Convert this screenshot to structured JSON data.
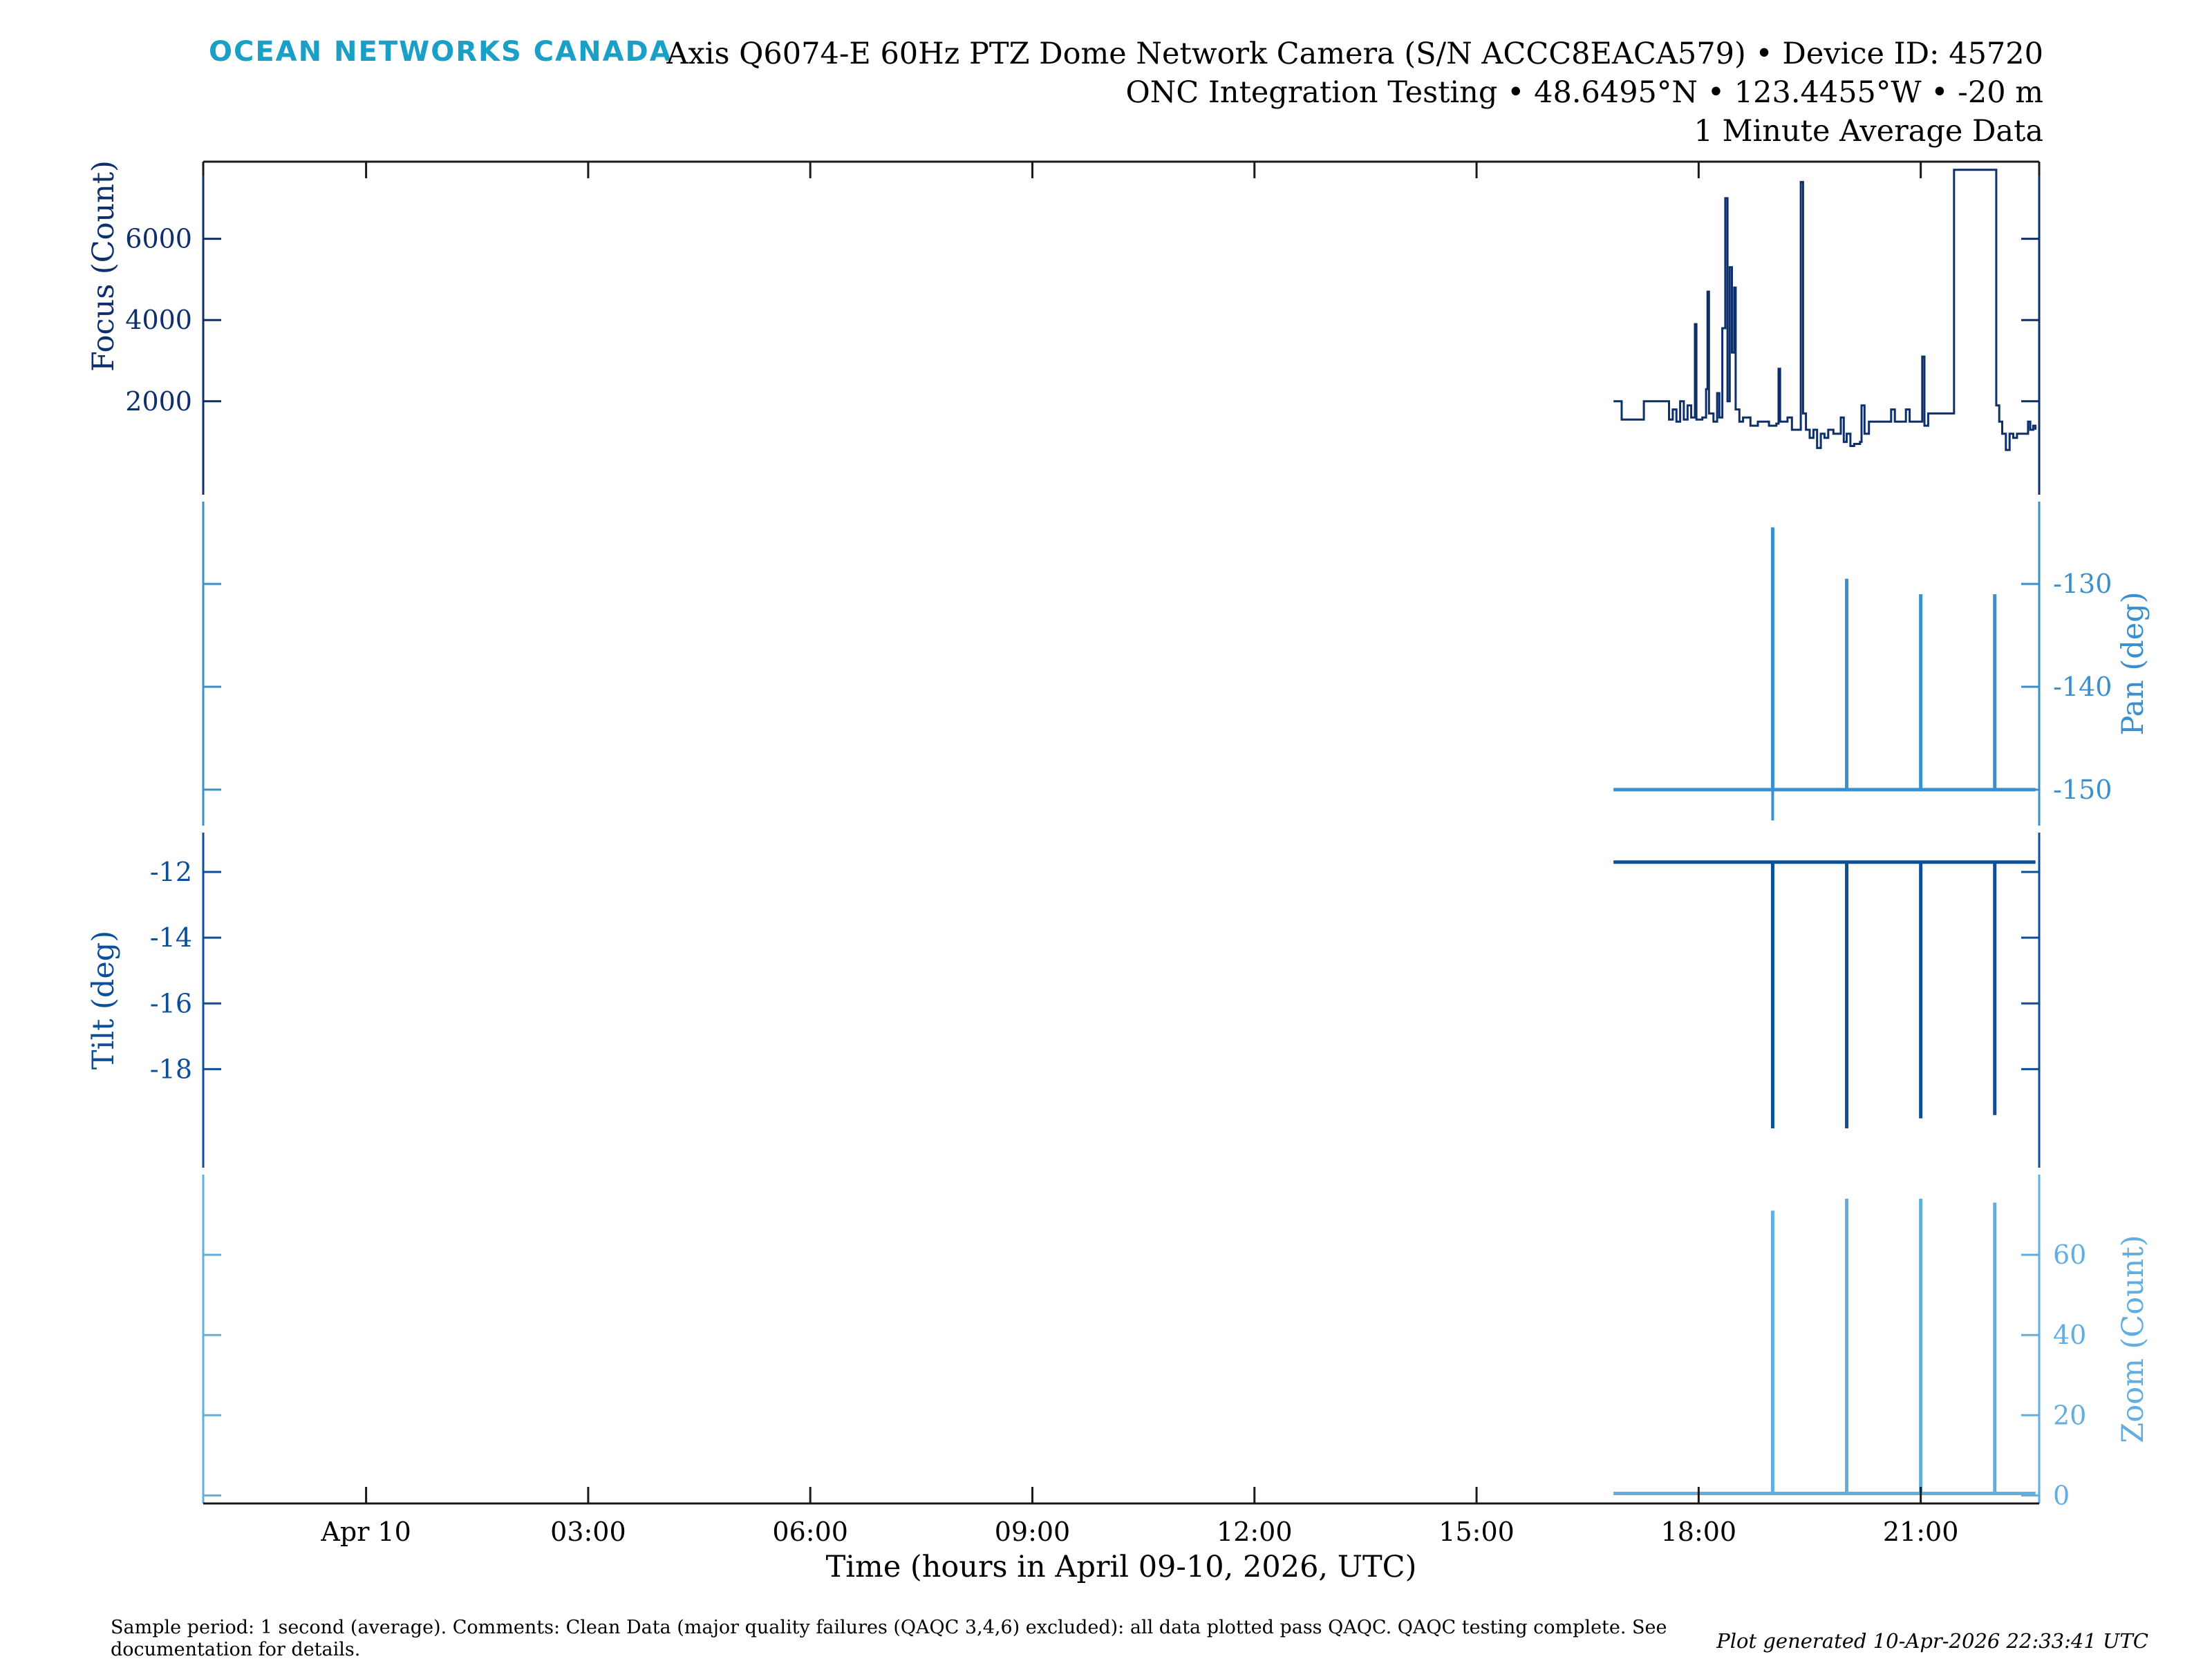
{
  "header": {
    "brand": "OCEAN NETWORKS CANADA",
    "title_line1": "Axis Q6074-E 60Hz PTZ Dome Network Camera (S/N ACCC8EACA579) • Device ID: 45720",
    "title_line2": "ONC Integration Testing • 48.6495°N • 123.4455°W • -20 m",
    "title_line3": "1 Minute Average Data"
  },
  "footer": {
    "comments": "Sample period: 1 second (average). Comments: Clean Data (major quality failures (QAQC 3,4,6) excluded): all data plotted pass QAQC. QAQC testing complete. See documentation for details.",
    "generated": "Plot generated 10-Apr-2026 22:33:41 UTC"
  },
  "colors": {
    "focus": "#0d2f6b",
    "pan": "#3a8fcf",
    "tilt": "#0b4f9a",
    "zoom": "#62aee0",
    "axis": "#1a1a1a"
  },
  "chart_data": {
    "type": "line",
    "xlabel": "Time (hours in April 09-10, 2026, UTC)",
    "x_unit": "hours since 2026-04-09 00:00 UTC",
    "xlim": [
      21.8,
      46.6
    ],
    "x_ticks": [
      {
        "x": 24,
        "label": "Apr 10"
      },
      {
        "x": 27,
        "label": "03:00"
      },
      {
        "x": 30,
        "label": "06:00"
      },
      {
        "x": 33,
        "label": "09:00"
      },
      {
        "x": 36,
        "label": "12:00"
      },
      {
        "x": 39,
        "label": "15:00"
      },
      {
        "x": 42,
        "label": "18:00"
      },
      {
        "x": 45,
        "label": "21:00"
      }
    ],
    "series": [
      {
        "name": "Focus (Count)",
        "ylabel": "Focus (Count)",
        "side": "left",
        "ylim": [
          -300,
          7900
        ],
        "yticks": [
          2000,
          4000,
          6000
        ],
        "points": [
          [
            40.85,
            2000
          ],
          [
            40.95,
            2000
          ],
          [
            40.96,
            1550
          ],
          [
            41.25,
            1550
          ],
          [
            41.26,
            2000
          ],
          [
            41.55,
            2000
          ],
          [
            41.6,
            1550
          ],
          [
            41.65,
            1800
          ],
          [
            41.7,
            1500
          ],
          [
            41.75,
            2000
          ],
          [
            41.8,
            1550
          ],
          [
            41.85,
            1900
          ],
          [
            41.9,
            1600
          ],
          [
            41.95,
            3900
          ],
          [
            41.97,
            1550
          ],
          [
            42.05,
            1600
          ],
          [
            42.1,
            2300
          ],
          [
            42.12,
            4700
          ],
          [
            42.14,
            1700
          ],
          [
            42.2,
            1500
          ],
          [
            42.25,
            2200
          ],
          [
            42.28,
            1600
          ],
          [
            42.32,
            3800
          ],
          [
            42.36,
            7000
          ],
          [
            42.39,
            2000
          ],
          [
            42.42,
            5300
          ],
          [
            42.45,
            3200
          ],
          [
            42.48,
            4800
          ],
          [
            42.5,
            1800
          ],
          [
            42.55,
            1500
          ],
          [
            42.6,
            1600
          ],
          [
            42.7,
            1400
          ],
          [
            42.8,
            1500
          ],
          [
            42.95,
            1400
          ],
          [
            43.05,
            1450
          ],
          [
            43.08,
            2800
          ],
          [
            43.1,
            1500
          ],
          [
            43.2,
            1600
          ],
          [
            43.26,
            1300
          ],
          [
            43.32,
            1300
          ],
          [
            43.38,
            7400
          ],
          [
            43.41,
            1700
          ],
          [
            43.45,
            1300
          ],
          [
            43.5,
            1100
          ],
          [
            43.55,
            1300
          ],
          [
            43.6,
            850
          ],
          [
            43.65,
            1200
          ],
          [
            43.7,
            1100
          ],
          [
            43.75,
            1300
          ],
          [
            43.82,
            1200
          ],
          [
            43.88,
            1200
          ],
          [
            43.92,
            1600
          ],
          [
            43.96,
            1000
          ],
          [
            44.0,
            1200
          ],
          [
            44.05,
            900
          ],
          [
            44.1,
            950
          ],
          [
            44.18,
            1000
          ],
          [
            44.2,
            1900
          ],
          [
            44.24,
            1200
          ],
          [
            44.3,
            1500
          ],
          [
            44.45,
            1500
          ],
          [
            44.55,
            1500
          ],
          [
            44.6,
            1800
          ],
          [
            44.65,
            1500
          ],
          [
            44.75,
            1500
          ],
          [
            44.8,
            1800
          ],
          [
            44.85,
            1500
          ],
          [
            44.98,
            1500
          ],
          [
            45.02,
            3100
          ],
          [
            45.05,
            1400
          ],
          [
            45.1,
            1700
          ],
          [
            45.2,
            1700
          ],
          [
            45.4,
            1700
          ],
          [
            45.45,
            7700
          ],
          [
            45.98,
            7700
          ],
          [
            46.02,
            1900
          ],
          [
            46.06,
            1500
          ],
          [
            46.1,
            1200
          ],
          [
            46.15,
            800
          ],
          [
            46.2,
            1200
          ],
          [
            46.25,
            1100
          ],
          [
            46.3,
            1200
          ],
          [
            46.4,
            1200
          ],
          [
            46.45,
            1500
          ],
          [
            46.48,
            1300
          ],
          [
            46.52,
            1400
          ],
          [
            46.55,
            1300
          ]
        ]
      },
      {
        "name": "Pan (deg)",
        "ylabel": "Pan (deg)",
        "side": "right",
        "ylim": [
          -153.5,
          -122.0
        ],
        "yticks": [
          -130,
          -140,
          -150
        ],
        "baseline": -150,
        "spikes": [
          {
            "x": 43.0,
            "value": -124.5,
            "dip": -153.0
          },
          {
            "x": 44.0,
            "value": -129.5
          },
          {
            "x": 45.0,
            "value": -131.0
          },
          {
            "x": 46.0,
            "value": -131.0
          }
        ]
      },
      {
        "name": "Tilt (deg)",
        "ylabel": "Tilt (deg)",
        "side": "left",
        "ylim": [
          -21.0,
          -10.8
        ],
        "yticks": [
          -12,
          -14,
          -16,
          -18
        ],
        "baseline": -11.7,
        "spikes": [
          {
            "x": 43.0,
            "value": -19.8
          },
          {
            "x": 44.0,
            "value": -19.8
          },
          {
            "x": 45.0,
            "value": -19.5
          },
          {
            "x": 46.0,
            "value": -19.4
          }
        ]
      },
      {
        "name": "Zoom (Count)",
        "ylabel": "Zoom (Count)",
        "side": "right",
        "ylim": [
          -2,
          80
        ],
        "yticks": [
          0,
          20,
          40,
          60
        ],
        "baseline": 0.5,
        "spikes": [
          {
            "x": 43.0,
            "value": 71
          },
          {
            "x": 44.0,
            "value": 74
          },
          {
            "x": 45.0,
            "value": 74
          },
          {
            "x": 46.0,
            "value": 73
          }
        ]
      }
    ]
  }
}
